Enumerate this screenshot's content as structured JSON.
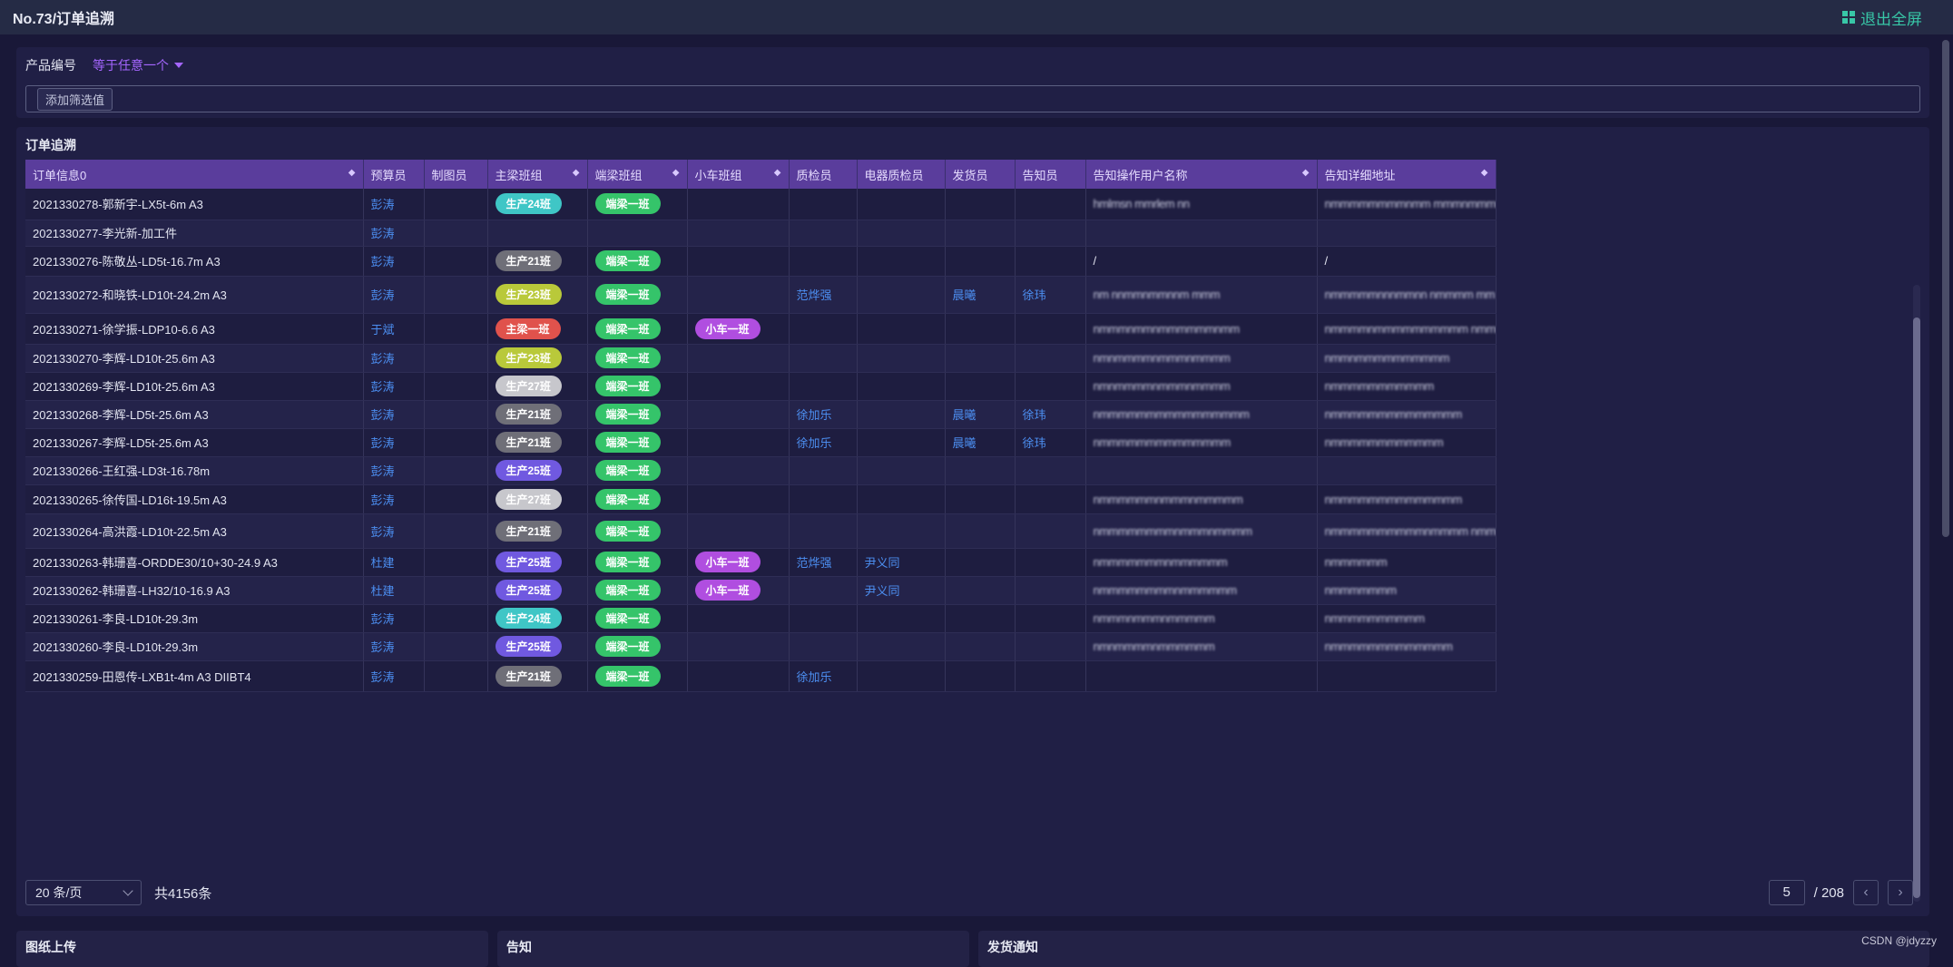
{
  "app": {
    "title": "No.73/订单追溯",
    "exit_fullscreen": "退出全屏"
  },
  "filter": {
    "field_label": "产品编号",
    "operator": "等于任意一个",
    "add_filter": "添加筛选值"
  },
  "table": {
    "title": "订单追溯",
    "columns": [
      "订单信息0",
      "预算员",
      "制图员",
      "主梁班组",
      "端梁班组",
      "小车班组",
      "质检员",
      "电器质检员",
      "发货员",
      "告知员",
      "告知操作用户名称",
      "告知详细地址"
    ],
    "rows": [
      {
        "order": "2021330278-郭新宇-LX5t-6m A3",
        "budget": "彭涛",
        "drafter": "",
        "main": "生产24班",
        "main_color": "#3fc6c6",
        "end": "端梁一班",
        "cart": "",
        "qc": "",
        "eqc": "",
        "ship": "",
        "notify": "",
        "notify_user": "hmlmsn mmrlem nn",
        "notify_addr": "nmmmmmmmmnmm mmmnmmmmmm mm"
      },
      {
        "order": "2021330277-李光新-加工件",
        "budget": "彭涛",
        "drafter": "",
        "main": "",
        "main_color": "",
        "end": "",
        "cart": "",
        "qc": "",
        "eqc": "",
        "ship": "",
        "notify": "",
        "notify_user": "",
        "notify_addr": ""
      },
      {
        "order": "2021330276-陈敬丛-LD5t-16.7m A3",
        "budget": "彭涛",
        "drafter": "",
        "main": "生产21班",
        "main_color": "#6f6f78",
        "end": "端梁一班",
        "cart": "",
        "qc": "",
        "eqc": "",
        "ship": "",
        "notify": "",
        "notify_user": "/",
        "notify_addr": "/"
      },
      {
        "order": "2021330272-和晓铁-LD10t-24.2m A3",
        "budget": "彭涛",
        "drafter": "",
        "main": "生产23班",
        "main_color": "#b9c93a",
        "end": "端梁一班",
        "cart": "",
        "qc": "范烨强",
        "eqc": "",
        "ship": "晨曦",
        "notify": "徐玮",
        "notify_user": "nm nnmmnmmnnm mmm",
        "notify_addr": "nmmmmmnnnmmnn nmmmm mm"
      },
      {
        "order": "2021330271-徐学振-LDP10-6.6 A3",
        "budget": "于斌",
        "drafter": "",
        "main": "主梁一班",
        "main_color": "#e0524c",
        "end": "端梁一班",
        "cart": "小车一班",
        "qc": "",
        "eqc": "",
        "ship": "",
        "notify": "",
        "notify_user": "nmmmnmmnmmmmmmnmm",
        "notify_addr": "nmmmmnmmmmmmmmmm nmmmmmmmm"
      },
      {
        "order": "2021330270-李辉-LD10t-25.6m A3",
        "budget": "彭涛",
        "drafter": "",
        "main": "生产23班",
        "main_color": "#b9c93a",
        "end": "端梁一班",
        "cart": "",
        "qc": "",
        "eqc": "",
        "ship": "",
        "notify": "",
        "notify_user": "nmnmmmmnmmmnmmmm",
        "notify_addr": "nmmnmmmmmmmmmm"
      },
      {
        "order": "2021330269-李辉-LD10t-25.6m A3",
        "budget": "彭涛",
        "drafter": "",
        "main": "生产27班",
        "main_color": "#c7c7cc",
        "end": "端梁一班",
        "cart": "",
        "qc": "",
        "eqc": "",
        "ship": "",
        "notify": "",
        "notify_user": "nmnmmmmnmmmnmmmm",
        "notify_addr": "nmmmmmmmmmmm"
      },
      {
        "order": "2021330268-李辉-LD5t-25.6m A3",
        "budget": "彭涛",
        "drafter": "",
        "main": "生产21班",
        "main_color": "#6f6f78",
        "end": "端梁一班",
        "cart": "",
        "qc": "徐加乐",
        "eqc": "",
        "ship": "晨曦",
        "notify": "徐玮",
        "notify_user": "nmmmmmmmmmmmmmmmm",
        "notify_addr": "nmmmmmmmmmmmmmm"
      },
      {
        "order": "2021330267-李辉-LD5t-25.6m A3",
        "budget": "彭涛",
        "drafter": "",
        "main": "生产21班",
        "main_color": "#6f6f78",
        "end": "端梁一班",
        "cart": "",
        "qc": "徐加乐",
        "eqc": "",
        "ship": "晨曦",
        "notify": "徐玮",
        "notify_user": "nmmmmmmmmmmmmmm",
        "notify_addr": "nmmmmmmmmmmmm"
      },
      {
        "order": "2021330266-王红强-LD3t-16.78m",
        "budget": "彭涛",
        "drafter": "",
        "main": "生产25班",
        "main_color": "#7059e0",
        "end": "端梁一班",
        "cart": "",
        "qc": "",
        "eqc": "",
        "ship": "",
        "notify": "",
        "notify_user": "",
        "notify_addr": ""
      },
      {
        "order": "2021330265-徐传国-LD16t-19.5m A3",
        "budget": "彭涛",
        "drafter": "",
        "main": "生产27班",
        "main_color": "#c7c7cc",
        "end": "端梁一班",
        "cart": "",
        "qc": "",
        "eqc": "",
        "ship": "",
        "notify": "",
        "notify_user": "nmmmmmmnmmmnmmmmm",
        "notify_addr": "nmmmmmmmmmmmmmm"
      },
      {
        "order": "2021330264-高洪霞-LD10t-22.5m A3",
        "budget": "彭涛",
        "drafter": "",
        "main": "生产21班",
        "main_color": "#6f6f78",
        "end": "端梁一班",
        "cart": "",
        "qc": "",
        "eqc": "",
        "ship": "",
        "notify": "",
        "notify_user": "nmmmmmmmmnmmmnmmmm",
        "notify_addr": "nmmmmmmmmmmnmmmm nmmmmmmmmm"
      },
      {
        "order": "2021330263-韩珊喜-ORDDE30/10+30-24.9 A3",
        "budget": "杜建",
        "drafter": "",
        "main": "生产25班",
        "main_color": "#7059e0",
        "end": "端梁一班",
        "cart": "小车一班",
        "qc": "范烨强",
        "eqc": "尹义同",
        "ship": "",
        "notify": "",
        "notify_user": "nmmmmmmmnmmmmmm",
        "notify_addr": "nmmmmmm"
      },
      {
        "order": "2021330262-韩珊喜-LH32/10-16.9 A3",
        "budget": "杜建",
        "drafter": "",
        "main": "生产25班",
        "main_color": "#7059e0",
        "end": "端梁一班",
        "cart": "小车一班",
        "qc": "",
        "eqc": "尹义同",
        "ship": "",
        "notify": "",
        "notify_user": "nmmmmmmmmnmmmmmm",
        "notify_addr": "nmmmmmmm"
      },
      {
        "order": "2021330261-李良-LD10t-29.3m",
        "budget": "彭涛",
        "drafter": "",
        "main": "生产24班",
        "main_color": "#3fc6c6",
        "end": "端梁一班",
        "cart": "",
        "qc": "",
        "eqc": "",
        "ship": "",
        "notify": "",
        "notify_user": "nmmmnmmmnmmmmm",
        "notify_addr": "nmmmmmmmmmm"
      },
      {
        "order": "2021330260-李良-LD10t-29.3m",
        "budget": "彭涛",
        "drafter": "",
        "main": "生产25班",
        "main_color": "#7059e0",
        "end": "端梁一班",
        "cart": "",
        "qc": "",
        "eqc": "",
        "ship": "",
        "notify": "",
        "notify_user": "nmnmmmmnmmmmmm",
        "notify_addr": "nmmmmmmmmmmmmm"
      },
      {
        "order": "2021330259-田恩传-LXB1t-4m A3 DIIBT4",
        "budget": "彭涛",
        "drafter": "",
        "main": "生产21班",
        "main_color": "#6f6f78",
        "end": "端梁一班",
        "cart": "",
        "qc": "徐加乐",
        "eqc": "",
        "ship": "",
        "notify": "",
        "notify_user": "",
        "notify_addr": ""
      }
    ]
  },
  "colors": {
    "end_pill": "#35c46a",
    "cart_pill": "#b04ee0",
    "header_bg": "#5a3d9c",
    "link": "#4c8ef0"
  },
  "pagination": {
    "page_size": "20 条/页",
    "total": "共4156条",
    "current_page": "5",
    "page_total": "/ 208"
  },
  "bottom_panels": [
    "图纸上传",
    "告知",
    "发货通知"
  ],
  "watermark": "CSDN @jdyzzy"
}
